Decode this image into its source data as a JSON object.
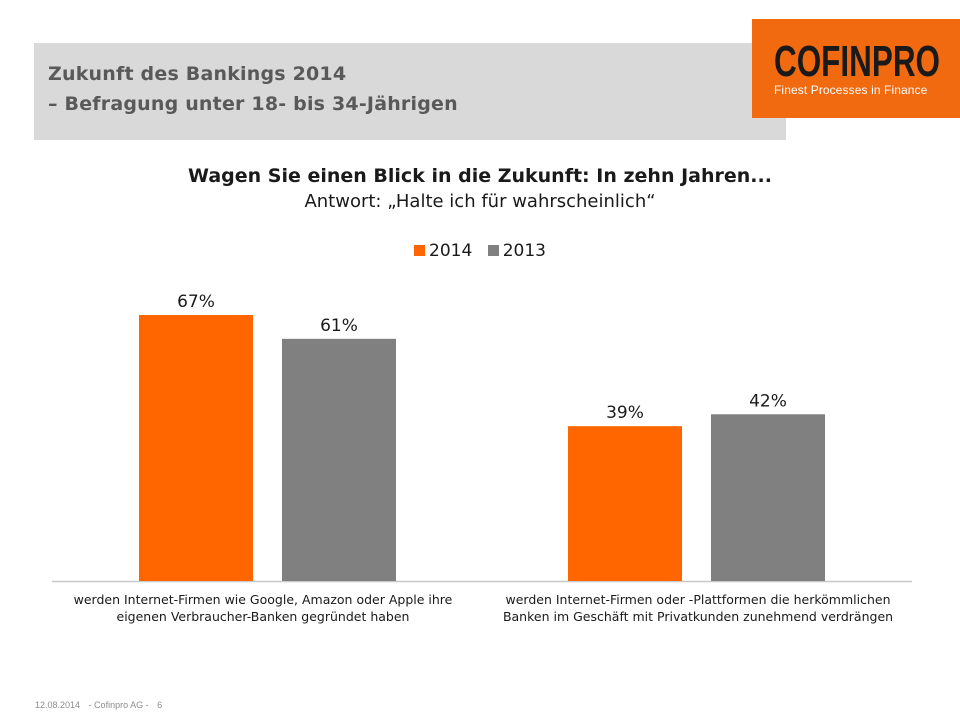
{
  "header": {
    "title_line1": "Zukunft des Bankings 2014",
    "title_line2": "– Befragung unter 18- bis 34-Jährigen"
  },
  "logo": {
    "wordmark": "COFINPRO",
    "tagline": "Finest Processes in Finance"
  },
  "chart_data": {
    "type": "bar",
    "title": "Wagen Sie einen Blick in die Zukunft: In zehn Jahren...",
    "subtitle": "Antwort: „Halte ich für wahrscheinlich“",
    "categories": [
      "werden Internet-Firmen wie Google, Amazon oder Apple ihre eigenen Verbraucher-Banken gegründet haben",
      "werden Internet-Firmen oder -Plattformen die herkömmlichen Banken im Geschäft mit Privatkunden zunehmend verdrängen"
    ],
    "series": [
      {
        "name": "2014",
        "color": "#ff6600",
        "values": [
          67,
          39
        ],
        "labels": [
          "67%",
          "39%"
        ]
      },
      {
        "name": "2013",
        "color": "#808080",
        "values": [
          61,
          42
        ],
        "labels": [
          "61%",
          "42%"
        ]
      }
    ],
    "unit": "%",
    "ylim": [
      0,
      80
    ],
    "legend": "top-center",
    "grid": false
  },
  "category_labels": [
    {
      "line1": "werden Internet-Firmen wie Google, Amazon oder Apple ihre",
      "line2": "eigenen Verbraucher-Banken gegründet haben"
    },
    {
      "line1": "werden Internet-Firmen oder -Plattformen die herkömmlichen",
      "line2": "Banken im Geschäft mit Privatkunden zunehmend verdrängen"
    }
  ],
  "footer": {
    "date": "12.08.2014",
    "company": "- Cofinpro AG -",
    "page": "6"
  }
}
